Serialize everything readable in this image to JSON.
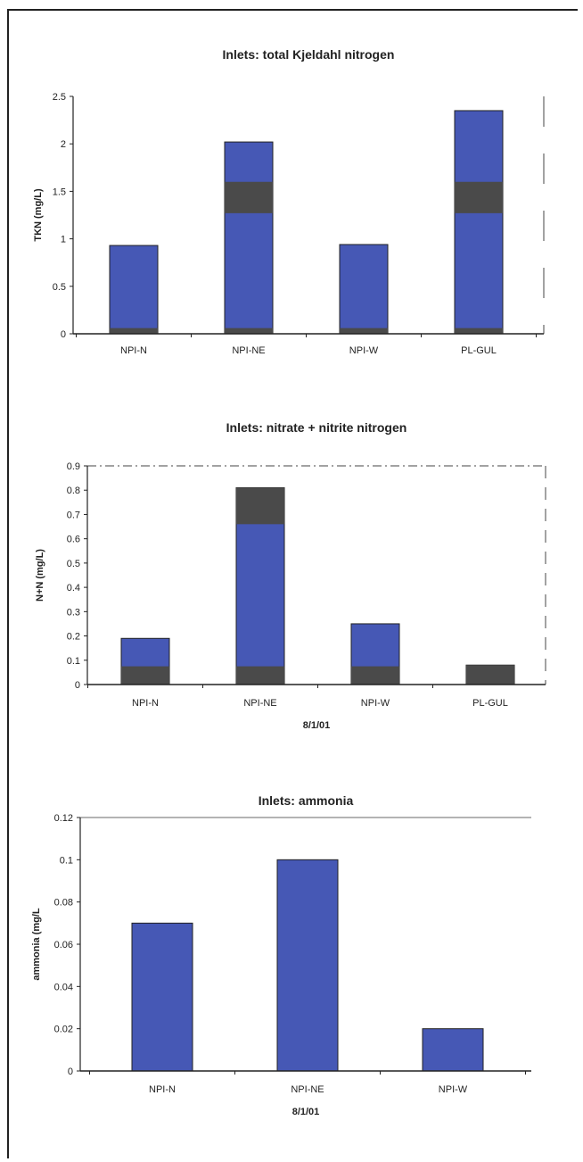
{
  "colors": {
    "bar": "#4658b5",
    "overlay": "#4a4a4a",
    "axis": "#222222",
    "frame": "#444444"
  },
  "chart_data": [
    {
      "type": "bar",
      "title": "Inlets: total Kjeldahl nitrogen",
      "ylabel": "TKN (mg/L)",
      "xlabel": "",
      "categories": [
        "NPI-N",
        "NPI-NE",
        "NPI-W",
        "PL-GUL"
      ],
      "values": [
        0.93,
        2.02,
        0.94,
        2.35
      ],
      "ylim": [
        0,
        2.5
      ],
      "yticks": [
        "0",
        "0.5",
        "1",
        "1.5",
        "2",
        "2.5"
      ],
      "overlay_bands": [
        [
          [
            0,
            0.06
          ]
        ],
        [
          [
            0,
            0.06
          ],
          [
            1.27,
            1.6
          ]
        ],
        [
          [
            0,
            0.06
          ]
        ],
        [
          [
            0,
            0.06
          ],
          [
            1.27,
            1.6
          ]
        ]
      ],
      "grid": false,
      "legend": "none"
    },
    {
      "type": "bar",
      "title": "Inlets: nitrate + nitrite nitrogen",
      "ylabel": "N+N (mg/L)",
      "xlabel": "8/1/01",
      "categories": [
        "NPI-N",
        "NPI-NE",
        "NPI-W",
        "PL-GUL"
      ],
      "values": [
        0.19,
        0.81,
        0.25,
        0.08
      ],
      "ylim": [
        0,
        0.9
      ],
      "yticks": [
        "0",
        "0.1",
        "0.2",
        "0.3",
        "0.4",
        "0.5",
        "0.6",
        "0.7",
        "0.8",
        "0.9"
      ],
      "overlay_bands": [
        [
          [
            0,
            0.075
          ]
        ],
        [
          [
            0,
            0.075
          ],
          [
            0.66,
            0.81
          ]
        ],
        [
          [
            0,
            0.075
          ]
        ],
        [
          [
            0,
            0.08
          ]
        ]
      ],
      "grid": false,
      "legend": "none"
    },
    {
      "type": "bar",
      "title": "Inlets: ammonia",
      "ylabel": "ammonia (mg/L",
      "xlabel": "8/1/01",
      "categories": [
        "NPI-N",
        "NPI-NE",
        "NPI-W"
      ],
      "values": [
        0.07,
        0.1,
        0.02
      ],
      "ylim": [
        0,
        0.12
      ],
      "yticks": [
        "0",
        "0.02",
        "0.04",
        "0.06",
        "0.08",
        "0.1",
        "0.12"
      ],
      "overlay_bands": [
        [],
        [],
        []
      ],
      "grid": false,
      "legend": "none"
    }
  ]
}
